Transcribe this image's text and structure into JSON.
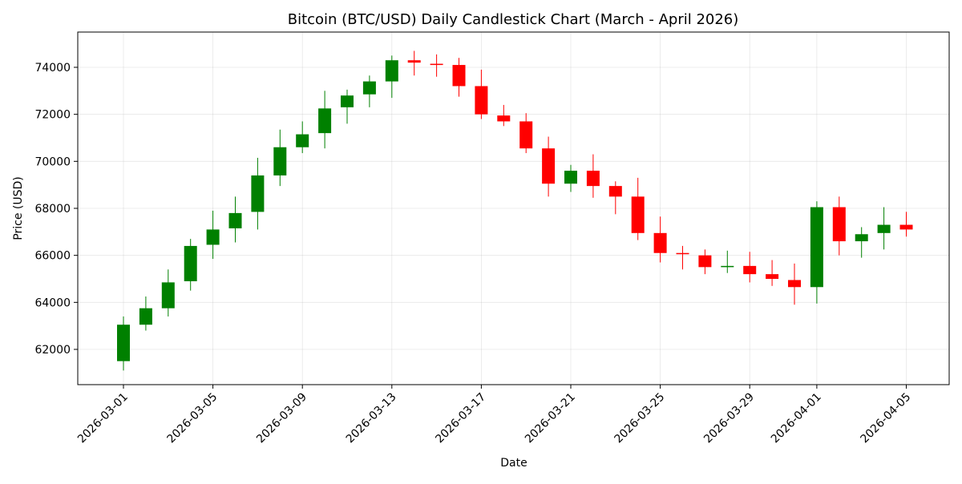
{
  "chart_data": {
    "type": "candlestick",
    "title": "Bitcoin (BTC/USD) Daily Candlestick Chart (March - April 2026)",
    "xlabel": "Date",
    "ylabel": "Price (USD)",
    "ylim": [
      60500,
      75500
    ],
    "yticks": [
      62000,
      64000,
      66000,
      68000,
      70000,
      72000,
      74000
    ],
    "xticks": [
      "2026-03-01",
      "2026-03-05",
      "2026-03-09",
      "2026-03-13",
      "2026-03-17",
      "2026-03-21",
      "2026-03-25",
      "2026-03-29",
      "2026-04-01",
      "2026-04-05"
    ],
    "grid": true,
    "colors": {
      "up": "#008000",
      "down": "#ff0000"
    },
    "candles": [
      {
        "date": "2026-03-01",
        "open": 61500,
        "high": 63400,
        "low": 61100,
        "close": 63050
      },
      {
        "date": "2026-03-02",
        "open": 63050,
        "high": 64250,
        "low": 62800,
        "close": 63750
      },
      {
        "date": "2026-03-03",
        "open": 63750,
        "high": 65400,
        "low": 63400,
        "close": 64850
      },
      {
        "date": "2026-03-04",
        "open": 64900,
        "high": 66700,
        "low": 64500,
        "close": 66400
      },
      {
        "date": "2026-03-05",
        "open": 66450,
        "high": 67900,
        "low": 65850,
        "close": 67100
      },
      {
        "date": "2026-03-06",
        "open": 67150,
        "high": 68500,
        "low": 66550,
        "close": 67800
      },
      {
        "date": "2026-03-07",
        "open": 67850,
        "high": 70150,
        "low": 67100,
        "close": 69400
      },
      {
        "date": "2026-03-08",
        "open": 69400,
        "high": 71350,
        "low": 68950,
        "close": 70600
      },
      {
        "date": "2026-03-09",
        "open": 70600,
        "high": 71700,
        "low": 70350,
        "close": 71150
      },
      {
        "date": "2026-03-10",
        "open": 71200,
        "high": 73000,
        "low": 70550,
        "close": 72250
      },
      {
        "date": "2026-03-11",
        "open": 72300,
        "high": 73050,
        "low": 71600,
        "close": 72800
      },
      {
        "date": "2026-03-12",
        "open": 72850,
        "high": 73650,
        "low": 72300,
        "close": 73400
      },
      {
        "date": "2026-03-13",
        "open": 73400,
        "high": 74500,
        "low": 72700,
        "close": 74300
      },
      {
        "date": "2026-03-14",
        "open": 74300,
        "high": 74700,
        "low": 73650,
        "close": 74200
      },
      {
        "date": "2026-03-15",
        "open": 74150,
        "high": 74550,
        "low": 73600,
        "close": 74100
      },
      {
        "date": "2026-03-16",
        "open": 74100,
        "high": 74400,
        "low": 72750,
        "close": 73200
      },
      {
        "date": "2026-03-17",
        "open": 73200,
        "high": 73900,
        "low": 71800,
        "close": 72000
      },
      {
        "date": "2026-03-18",
        "open": 71950,
        "high": 72400,
        "low": 71500,
        "close": 71700
      },
      {
        "date": "2026-03-19",
        "open": 71700,
        "high": 72050,
        "low": 70350,
        "close": 70550
      },
      {
        "date": "2026-03-20",
        "open": 70550,
        "high": 71050,
        "low": 68500,
        "close": 69050
      },
      {
        "date": "2026-03-21",
        "open": 69050,
        "high": 69850,
        "low": 68700,
        "close": 69600
      },
      {
        "date": "2026-03-22",
        "open": 69600,
        "high": 70300,
        "low": 68450,
        "close": 68950
      },
      {
        "date": "2026-03-23",
        "open": 68950,
        "high": 69150,
        "low": 67750,
        "close": 68500
      },
      {
        "date": "2026-03-24",
        "open": 68500,
        "high": 69300,
        "low": 66650,
        "close": 66950
      },
      {
        "date": "2026-03-25",
        "open": 66950,
        "high": 67650,
        "low": 65700,
        "close": 66100
      },
      {
        "date": "2026-03-26",
        "open": 66100,
        "high": 66400,
        "low": 65400,
        "close": 66050
      },
      {
        "date": "2026-03-27",
        "open": 66000,
        "high": 66250,
        "low": 65200,
        "close": 65500
      },
      {
        "date": "2026-03-28",
        "open": 65500,
        "high": 66200,
        "low": 65250,
        "close": 65550
      },
      {
        "date": "2026-03-29",
        "open": 65550,
        "high": 66150,
        "low": 64850,
        "close": 65200
      },
      {
        "date": "2026-03-30",
        "open": 65200,
        "high": 65800,
        "low": 64700,
        "close": 65000
      },
      {
        "date": "2026-03-31",
        "open": 64950,
        "high": 65650,
        "low": 63900,
        "close": 64650
      },
      {
        "date": "2026-04-01",
        "open": 64650,
        "high": 68300,
        "low": 63950,
        "close": 68050
      },
      {
        "date": "2026-04-02",
        "open": 68050,
        "high": 68500,
        "low": 66000,
        "close": 66600
      },
      {
        "date": "2026-04-03",
        "open": 66600,
        "high": 67200,
        "low": 65900,
        "close": 66900
      },
      {
        "date": "2026-04-04",
        "open": 66950,
        "high": 68050,
        "low": 66250,
        "close": 67300
      },
      {
        "date": "2026-04-05",
        "open": 67300,
        "high": 67850,
        "low": 66800,
        "close": 67100
      }
    ]
  }
}
